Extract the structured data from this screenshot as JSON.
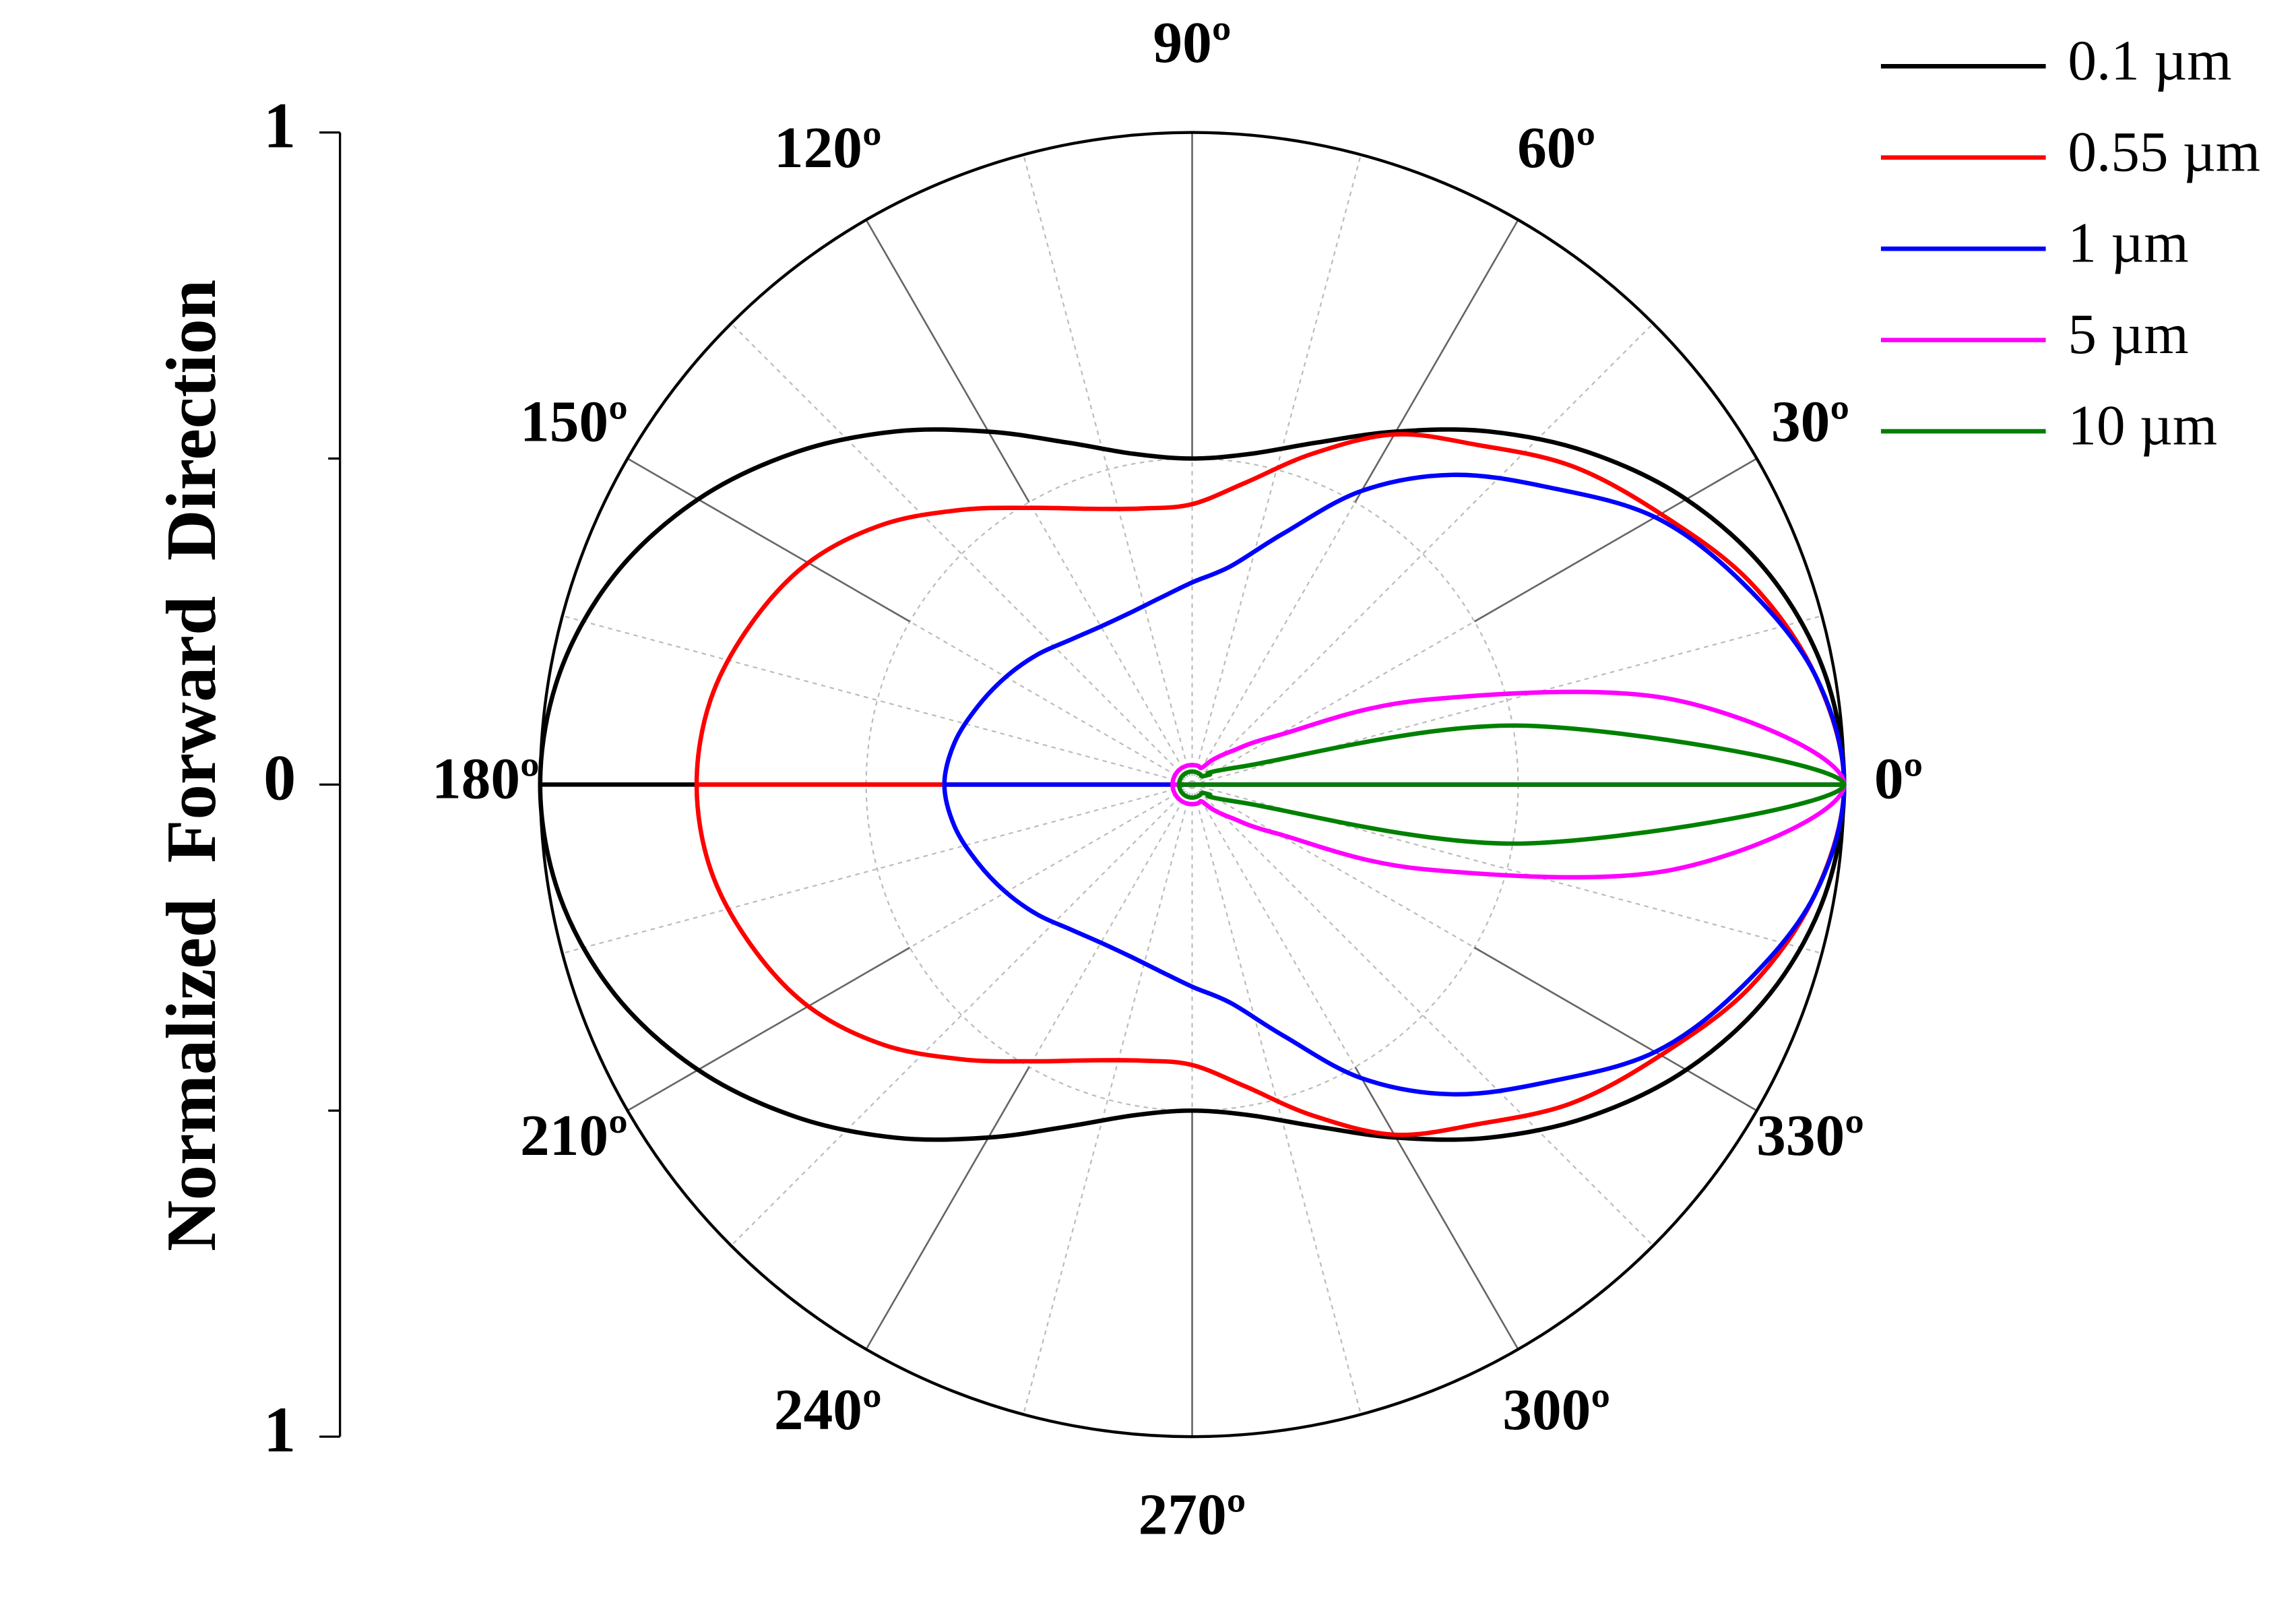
{
  "chart_data": {
    "type": "polar",
    "ylabel": "Normalized Forward Direction",
    "theta": [
      0,
      10,
      20,
      30,
      40,
      50,
      60,
      70,
      80,
      90,
      100,
      110,
      120,
      130,
      140,
      150,
      160,
      170,
      180,
      190,
      200,
      210,
      220,
      230,
      240,
      250,
      260,
      270,
      280,
      290,
      300,
      310,
      320,
      330,
      340,
      350
    ],
    "rlim": [
      0,
      1
    ],
    "ylim": [
      -1,
      1
    ],
    "yticks": [
      1,
      0,
      {
        "value": -1,
        "label": "1"
      }
    ],
    "yminorticks": [
      0.5,
      -0.5
    ],
    "rgrid": [
      0.5
    ],
    "thetaticks": [
      {
        "value": 0,
        "label": "0º"
      },
      {
        "value": 30,
        "label": "30º"
      },
      {
        "value": 60,
        "label": "60º"
      },
      {
        "value": 90,
        "label": "90º"
      },
      {
        "value": 120,
        "label": "120º"
      },
      {
        "value": 150,
        "label": "150º"
      },
      {
        "value": 180,
        "label": "180º"
      },
      {
        "value": 210,
        "label": "210º"
      },
      {
        "value": 240,
        "label": "240º"
      },
      {
        "value": 270,
        "label": "270º"
      },
      {
        "value": 300,
        "label": "300º"
      },
      {
        "value": 330,
        "label": "330º"
      }
    ],
    "thetaminorticks": [
      15,
      45,
      75,
      105,
      135,
      165,
      195,
      225,
      255,
      285,
      315,
      345
    ],
    "legend": "upper right",
    "series": [
      {
        "name": "0.1 µm",
        "color": "#000000",
        "values": [
          1,
          0.985,
          0.942,
          0.875,
          0.793,
          0.707,
          0.625,
          0.558,
          0.515,
          0.5,
          0.515,
          0.558,
          0.625,
          0.707,
          0.793,
          0.875,
          0.942,
          0.985,
          1,
          0.985,
          0.942,
          0.875,
          0.793,
          0.707,
          0.625,
          0.558,
          0.515,
          0.5,
          0.515,
          0.558,
          0.625,
          0.707,
          0.793,
          0.875,
          0.942,
          0.985
        ]
      },
      {
        "name": "0.55 µm",
        "color": "#ff0000",
        "values": [
          1,
          0.97,
          0.91,
          0.83,
          0.76,
          0.68,
          0.62,
          0.54,
          0.47,
          0.43,
          0.43,
          0.45,
          0.49,
          0.55,
          0.62,
          0.68,
          0.72,
          0.75,
          0.76,
          0.75,
          0.72,
          0.68,
          0.62,
          0.55,
          0.49,
          0.45,
          0.43,
          0.43,
          0.47,
          0.54,
          0.62,
          0.68,
          0.76,
          0.83,
          0.91,
          0.97
        ]
      },
      {
        "name": "1 µm",
        "color": "#0000ff",
        "values": [
          1,
          0.97,
          0.9,
          0.82,
          0.71,
          0.62,
          0.52,
          0.41,
          0.34,
          0.31,
          0.29,
          0.28,
          0.28,
          0.29,
          0.31,
          0.33,
          0.35,
          0.37,
          0.38,
          0.37,
          0.35,
          0.33,
          0.31,
          0.29,
          0.28,
          0.28,
          0.29,
          0.31,
          0.34,
          0.41,
          0.52,
          0.62,
          0.71,
          0.82,
          0.9,
          0.97
        ]
      },
      {
        "name": "5 µm",
        "color": "#ff00ff",
        "values": [
          1,
          0.75,
          0.38,
          0.15,
          0.08,
          0.05,
          0.03,
          0.03,
          0.03,
          0.03,
          0.03,
          0.03,
          0.03,
          0.03,
          0.03,
          0.03,
          0.03,
          0.03,
          0.03,
          0.03,
          0.03,
          0.03,
          0.03,
          0.03,
          0.03,
          0.03,
          0.03,
          0.03,
          0.03,
          0.03,
          0.03,
          0.05,
          0.08,
          0.15,
          0.38,
          0.75
        ]
      },
      {
        "name": "10 µm",
        "color": "#008000",
        "values": [
          1,
          0.52,
          0.08,
          0.03,
          0.02,
          0.02,
          0.02,
          0.02,
          0.02,
          0.02,
          0.02,
          0.02,
          0.02,
          0.02,
          0.02,
          0.02,
          0.02,
          0.02,
          0.02,
          0.02,
          0.02,
          0.02,
          0.02,
          0.02,
          0.02,
          0.02,
          0.02,
          0.02,
          0.02,
          0.02,
          0.02,
          0.02,
          0.02,
          0.03,
          0.08,
          0.52
        ]
      }
    ]
  }
}
